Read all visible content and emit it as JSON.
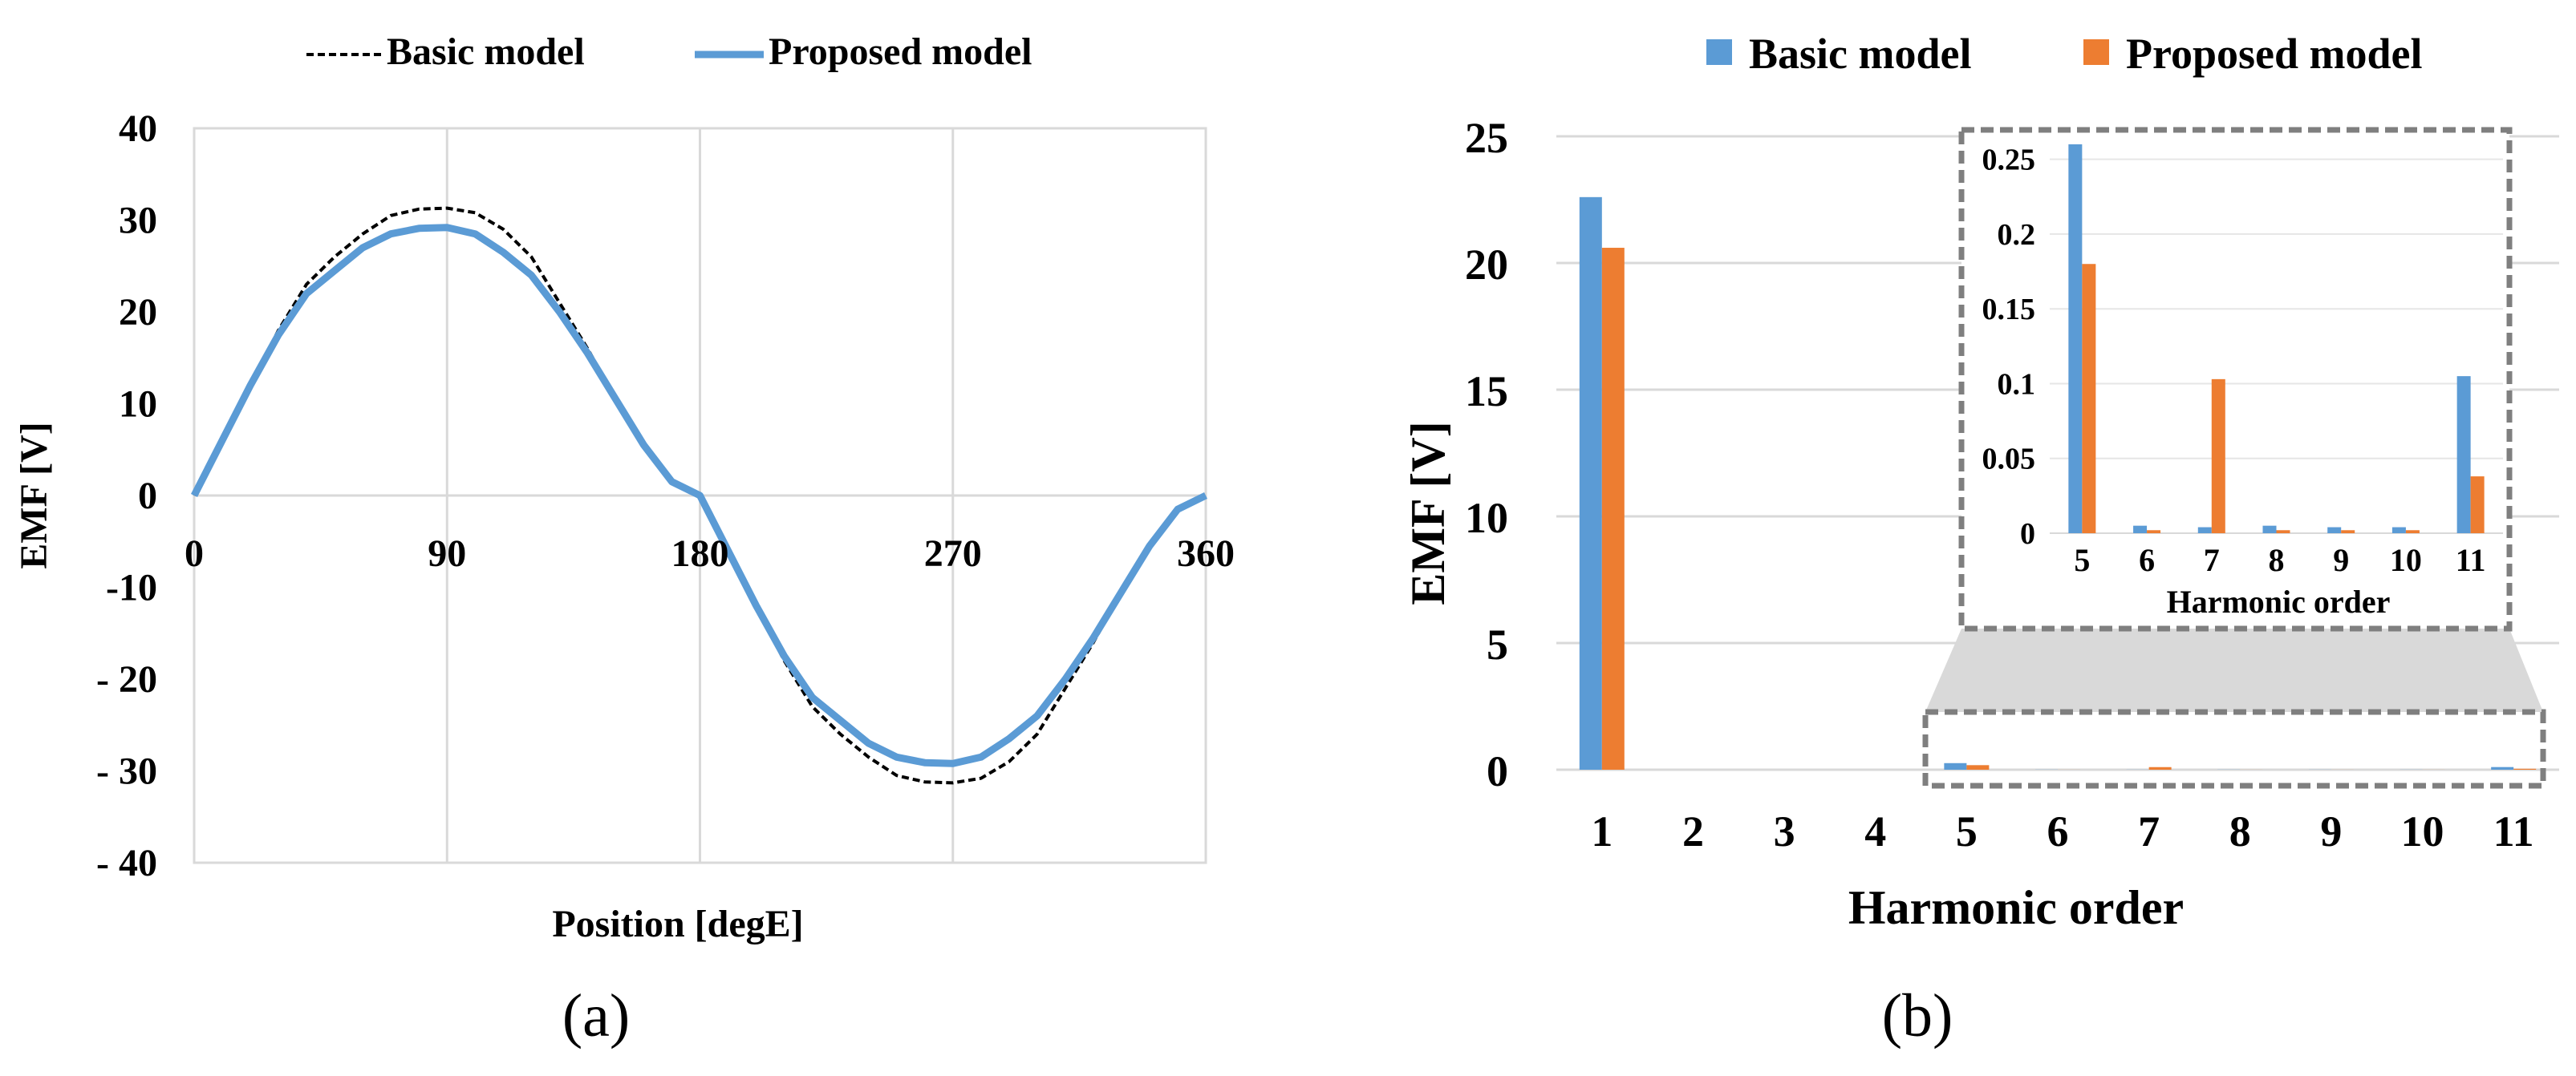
{
  "chart_data": [
    {
      "type": "line",
      "panel_label": "(a)",
      "xlabel": "Position [degE]",
      "ylabel": "EMF [V]",
      "xlim": [
        0,
        360
      ],
      "ylim": [
        -40,
        40
      ],
      "x_ticks": [
        "0",
        "90",
        "180",
        "270",
        "360"
      ],
      "x_tick_values": [
        0,
        90,
        180,
        270,
        360
      ],
      "y_ticks": [
        "40",
        "30",
        "20",
        "10",
        "0",
        "-10",
        "-  20",
        "-  30",
        "-  40"
      ],
      "y_tick_values": [
        40,
        30,
        20,
        10,
        0,
        -10,
        -20,
        -30,
        -40
      ],
      "grid": "vertical",
      "legend_position": "top-center",
      "series": [
        {
          "name": "Basic model",
          "color": "#000000",
          "style": "dashed",
          "x": [
            0,
            10,
            20,
            30,
            40,
            50,
            60,
            70,
            80,
            90,
            100,
            110,
            120,
            130,
            140,
            150,
            160,
            170,
            180,
            190,
            200,
            210,
            220,
            230,
            240,
            250,
            260,
            270,
            280,
            290,
            300,
            310,
            320,
            330,
            340,
            350,
            360
          ],
          "y": [
            0,
            6,
            12,
            18,
            23,
            26,
            28.5,
            30.5,
            31.2,
            31.3,
            30.8,
            29,
            26,
            21,
            16,
            10.5,
            5.5,
            1.5,
            0,
            -6,
            -12,
            -18,
            -23,
            -26,
            -28.5,
            -30.5,
            -31.2,
            -31.3,
            -30.8,
            -29,
            -26,
            -21,
            -16,
            -10.5,
            -5.5,
            -1.5,
            0
          ]
        },
        {
          "name": "Proposed model",
          "color": "#5b9bd5",
          "style": "solid",
          "x": [
            0,
            10,
            20,
            30,
            40,
            50,
            60,
            70,
            80,
            90,
            100,
            110,
            120,
            130,
            140,
            150,
            160,
            170,
            180,
            190,
            200,
            210,
            220,
            230,
            240,
            250,
            260,
            270,
            280,
            290,
            300,
            310,
            320,
            330,
            340,
            350,
            360
          ],
          "y": [
            0,
            6,
            12,
            17.5,
            22,
            24.5,
            27,
            28.5,
            29.1,
            29.2,
            28.5,
            26.5,
            24,
            20,
            15.5,
            10.5,
            5.5,
            1.5,
            0,
            -6,
            -12,
            -17.5,
            -22,
            -24.5,
            -27,
            -28.5,
            -29.1,
            -29.2,
            -28.5,
            -26.5,
            -24,
            -20,
            -15.5,
            -10.5,
            -5.5,
            -1.5,
            0
          ]
        }
      ]
    },
    {
      "type": "bar",
      "panel_label": "(b)",
      "xlabel": "Harmonic order",
      "ylabel": "EMF [V]",
      "ylim": [
        0,
        25
      ],
      "y_ticks": [
        "0",
        "5",
        "10",
        "15",
        "20",
        "25"
      ],
      "y_tick_values": [
        0,
        5,
        10,
        15,
        20,
        25
      ],
      "grid": "horizontal",
      "legend_position": "top-center",
      "categories": [
        "1",
        "2",
        "3",
        "4",
        "5",
        "6",
        "7",
        "8",
        "9",
        "10",
        "11"
      ],
      "series": [
        {
          "name": "Basic model",
          "color": "#5b9bd5",
          "values": [
            22.6,
            0,
            0,
            0,
            0.26,
            0.005,
            0.004,
            0.005,
            0.004,
            0.004,
            0.105
          ]
        },
        {
          "name": "Proposed model",
          "color": "#ed7d31",
          "values": [
            20.6,
            0,
            0,
            0,
            0.18,
            0.002,
            0.103,
            0.002,
            0.002,
            0.002,
            0.038
          ]
        }
      ],
      "inset": {
        "xlabel": "Harmonic order",
        "ylim": [
          0,
          0.26
        ],
        "y_ticks": [
          "0",
          "0.05",
          "0.1",
          "0.15",
          "0.2",
          "0.25"
        ],
        "y_tick_values": [
          0,
          0.05,
          0.1,
          0.15,
          0.2,
          0.25
        ],
        "categories": [
          "5",
          "6",
          "7",
          "8",
          "9",
          "10",
          "11"
        ]
      }
    }
  ]
}
